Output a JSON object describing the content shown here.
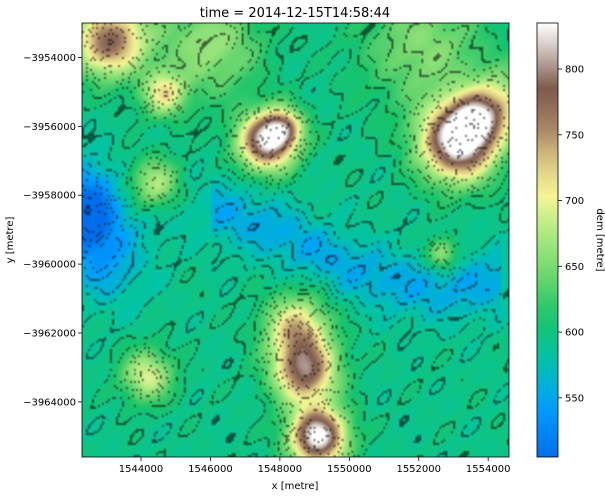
{
  "chart_data": {
    "type": "heatmap",
    "title": "time = 2014-12-15T14:58:44",
    "xlabel": "x [metre]",
    "ylabel": "y [metre]",
    "xlim": [
      1542300,
      1554600
    ],
    "ylim": [
      -3965600,
      -3953000
    ],
    "xticks": [
      1544000,
      1546000,
      1548000,
      1550000,
      1552000,
      1554000
    ],
    "xtick_labels": [
      "1544000",
      "1546000",
      "1548000",
      "1550000",
      "1552000",
      "1554000"
    ],
    "yticks": [
      -3954000,
      -3956000,
      -3958000,
      -3960000,
      -3962000,
      -3964000
    ],
    "ytick_labels": [
      "−3954000",
      "−3956000",
      "−3958000",
      "−3960000",
      "−3962000",
      "−3964000"
    ],
    "colorbar": {
      "label": "dem [metre]",
      "range": [
        505,
        835
      ],
      "ticks": [
        550,
        600,
        650,
        700,
        750,
        800
      ],
      "tick_labels": [
        "550",
        "600",
        "650",
        "700",
        "750",
        "800"
      ],
      "colormap": "terrain"
    },
    "contours": true,
    "grid": false
  }
}
